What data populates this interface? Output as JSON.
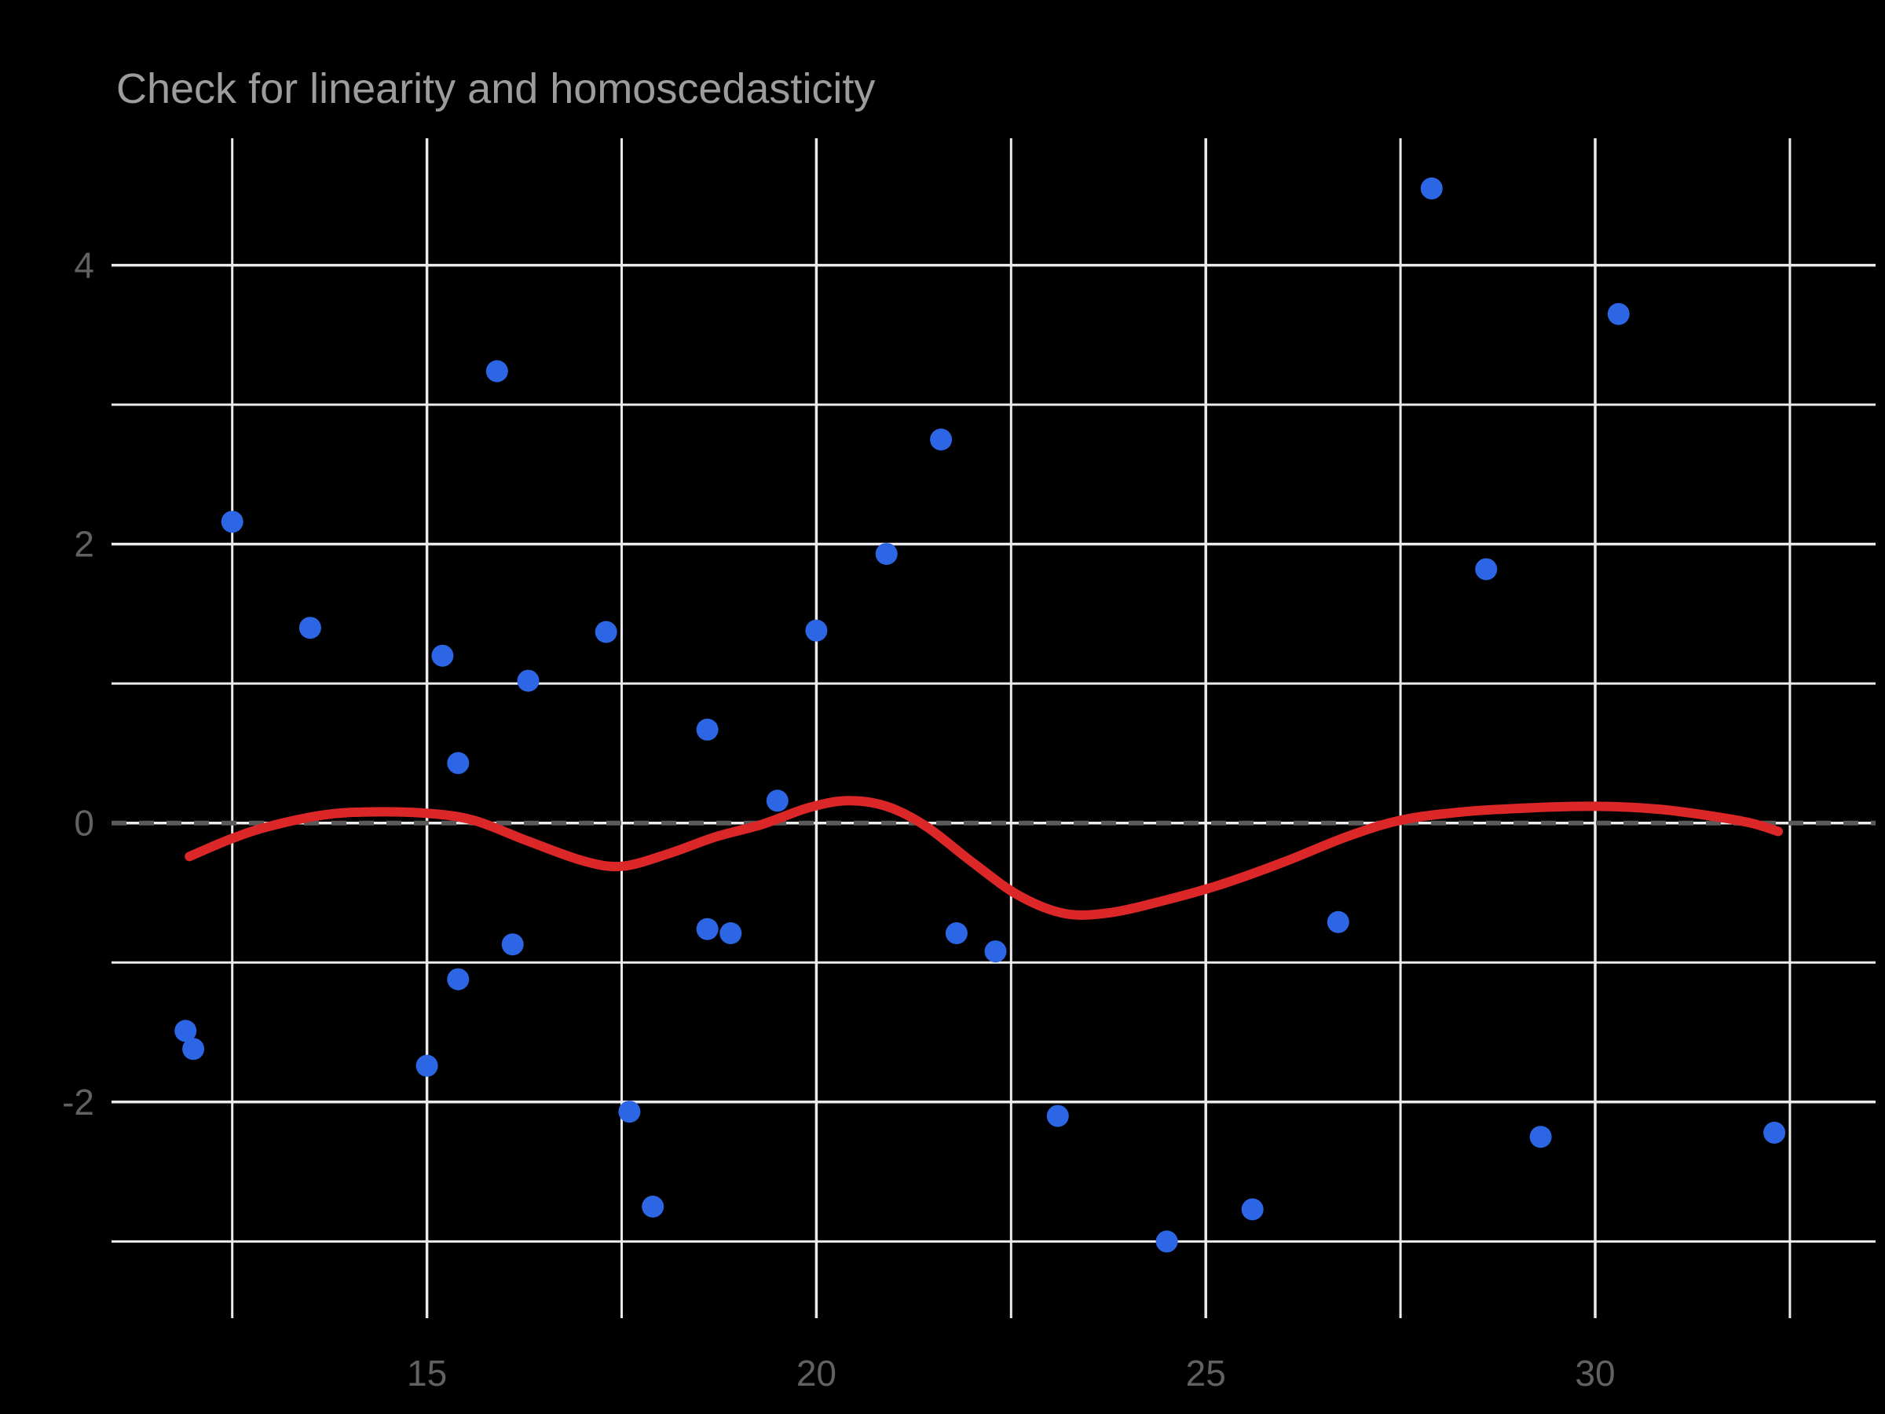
{
  "chart_data": {
    "type": "scatter",
    "title": "Check for linearity and homoscedasticity",
    "xlabel": "",
    "ylabel": "",
    "grid": true,
    "legend": false,
    "x_axis": {
      "range": [
        10.95,
        33.6
      ],
      "major_ticks": [
        {
          "value": 15,
          "label": "15"
        },
        {
          "value": 20,
          "label": "20"
        },
        {
          "value": 25,
          "label": "25"
        },
        {
          "value": 30,
          "label": "30"
        }
      ],
      "minor_ticks": [
        12.5,
        17.5,
        22.5,
        27.5,
        32.5
      ]
    },
    "y_axis": {
      "range": [
        -3.55,
        4.91
      ],
      "major_ticks": [
        {
          "value": 4,
          "label": "4"
        },
        {
          "value": 2,
          "label": "2"
        },
        {
          "value": 0,
          "label": "0"
        },
        {
          "value": -2,
          "label": "-2"
        }
      ],
      "minor_ticks": [
        3,
        1,
        -1,
        -3
      ]
    },
    "reference_line": {
      "y": 0,
      "style": "dashed"
    },
    "points": [
      [
        15.9,
        3.24
      ],
      [
        12.5,
        2.16
      ],
      [
        13.5,
        1.4
      ],
      [
        15.2,
        1.2
      ],
      [
        16.3,
        1.02
      ],
      [
        17.3,
        1.37
      ],
      [
        18.6,
        0.67
      ],
      [
        21.6,
        2.75
      ],
      [
        20.9,
        1.93
      ],
      [
        20.0,
        1.38
      ],
      [
        27.9,
        4.55
      ],
      [
        30.3,
        3.65
      ],
      [
        28.6,
        1.82
      ],
      [
        15.4,
        0.43
      ],
      [
        19.5,
        0.16
      ],
      [
        16.1,
        -0.87
      ],
      [
        15.4,
        -1.12
      ],
      [
        18.6,
        -0.76
      ],
      [
        18.9,
        -0.79
      ],
      [
        11.9,
        -1.49
      ],
      [
        12.0,
        -1.62
      ],
      [
        15.0,
        -1.74
      ],
      [
        17.6,
        -2.07
      ],
      [
        17.9,
        -2.75
      ],
      [
        21.8,
        -0.79
      ],
      [
        22.3,
        -0.92
      ],
      [
        26.7,
        -0.71
      ],
      [
        23.1,
        -2.1
      ],
      [
        25.6,
        -2.77
      ],
      [
        24.5,
        -3.0
      ],
      [
        29.3,
        -2.25
      ],
      [
        32.3,
        -2.22
      ]
    ],
    "smooth_curve": [
      [
        11.95,
        -0.24
      ],
      [
        12.5,
        -0.11
      ],
      [
        13.0,
        -0.02
      ],
      [
        13.7,
        0.06
      ],
      [
        14.3,
        0.08
      ],
      [
        15.0,
        0.07
      ],
      [
        15.6,
        0.02
      ],
      [
        16.3,
        -0.13
      ],
      [
        17.0,
        -0.27
      ],
      [
        17.5,
        -0.31
      ],
      [
        18.1,
        -0.22
      ],
      [
        18.7,
        -0.1
      ],
      [
        19.3,
        -0.01
      ],
      [
        19.9,
        0.11
      ],
      [
        20.4,
        0.16
      ],
      [
        20.9,
        0.12
      ],
      [
        21.4,
        -0.02
      ],
      [
        22.0,
        -0.28
      ],
      [
        22.6,
        -0.52
      ],
      [
        23.2,
        -0.65
      ],
      [
        23.8,
        -0.64
      ],
      [
        24.5,
        -0.55
      ],
      [
        25.2,
        -0.44
      ],
      [
        26.0,
        -0.28
      ],
      [
        26.8,
        -0.1
      ],
      [
        27.5,
        0.02
      ],
      [
        28.3,
        0.08
      ],
      [
        29.2,
        0.11
      ],
      [
        30.0,
        0.12
      ],
      [
        30.8,
        0.1
      ],
      [
        31.5,
        0.05
      ],
      [
        32.0,
        0.0
      ],
      [
        32.35,
        -0.06
      ]
    ],
    "colors": {
      "background": "#000000",
      "grid": "#ebebeb",
      "point": "#2d66e5",
      "curve": "#dc2729",
      "reference_dash": "#5a5a5a",
      "tick_label": "#616161",
      "title": "#9c9c9c"
    }
  }
}
